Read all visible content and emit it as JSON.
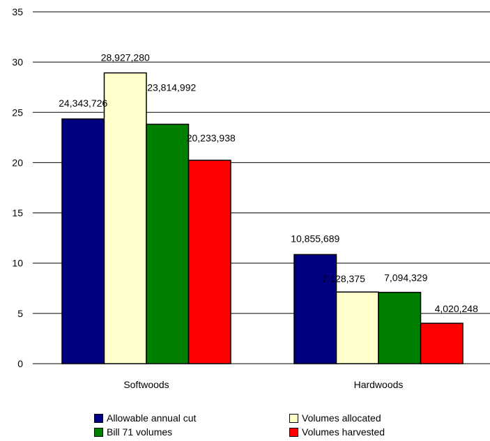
{
  "chart_data": {
    "type": "bar",
    "categories": [
      "Softwoods",
      "Hardwoods"
    ],
    "ylim": [
      0,
      35
    ],
    "yticks": [
      "0",
      "5",
      "10",
      "15",
      "20",
      "25",
      "30",
      "35"
    ],
    "grid": true,
    "legend_position": "bottom",
    "series": [
      {
        "name": "Allowable annual cut",
        "color": "#000080",
        "values": [
          24.343726,
          10.855689
        ],
        "labels": [
          "24,343,726",
          "10,855,689"
        ]
      },
      {
        "name": "Volumes allocated",
        "color": "#ffffcc",
        "values": [
          28.92728,
          7.128375
        ],
        "labels": [
          "28,927,280",
          "7,128,375"
        ]
      },
      {
        "name": "Bill 71 volumes",
        "color": "#008000",
        "values": [
          23.814992,
          7.094329
        ],
        "labels": [
          "23,814,992",
          "7,094,329"
        ]
      },
      {
        "name": "Volumes harvested",
        "color": "#ff0000",
        "values": [
          20.233938,
          4.020248
        ],
        "labels": [
          "20,233,938",
          "4,020,248"
        ]
      }
    ]
  }
}
